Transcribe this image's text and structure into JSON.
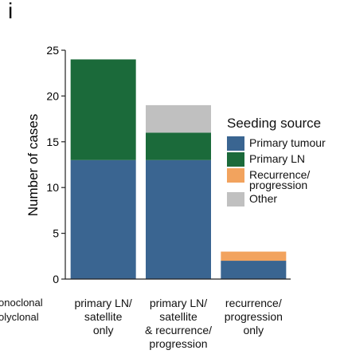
{
  "panel_letter": "i",
  "side_labels": [
    "onoclonal",
    "olyclonal"
  ],
  "chart_data": {
    "type": "bar",
    "stacked": true,
    "categories": [
      "primary LN/\nsatellite\nonly",
      "primary LN/\nsatellite\n& recurrence/\nprogression",
      "recurrence/\nprogression\nonly"
    ],
    "series": [
      {
        "name": "Primary tumour",
        "color": "#3a6591",
        "values": [
          13,
          13,
          2
        ]
      },
      {
        "name": "Primary LN",
        "color": "#1b6a3a",
        "values": [
          11,
          3,
          0
        ]
      },
      {
        "name": "Recurrence/\nprogression",
        "color": "#f2a35e",
        "values": [
          0,
          0,
          1
        ]
      },
      {
        "name": "Other",
        "color": "#c0c0c0",
        "values": [
          0,
          3,
          0
        ]
      }
    ],
    "ylabel": "Number of cases",
    "yticks": [
      0,
      5,
      10,
      15,
      20,
      25
    ],
    "ylim": [
      0,
      25
    ],
    "legend_title": "Seeding source",
    "legend_position": "right"
  }
}
